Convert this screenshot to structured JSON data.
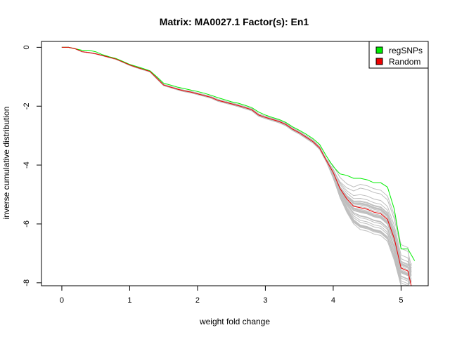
{
  "chart_data": {
    "type": "line",
    "title": "Matrix: MA0027.1 Factor(s): En1",
    "xlabel": "weight fold change",
    "ylabel": "inverse cumulative distribution",
    "xlim": [
      -0.3,
      5.4
    ],
    "ylim": [
      -8.1,
      0.2
    ],
    "xticks": [
      0,
      1,
      2,
      3,
      4,
      5
    ],
    "yticks": [
      0,
      -2,
      -4,
      -6,
      -8
    ],
    "grid": false,
    "legend_position": "top-right",
    "legend": [
      {
        "label": "regSNPs",
        "color": "#00ee00"
      },
      {
        "label": "Random",
        "color": "#ee0000"
      }
    ],
    "series": [
      {
        "name": "regSNPs",
        "color": "#00ee00",
        "x": [
          0,
          0.1,
          0.2,
          0.3,
          0.4,
          0.5,
          0.6,
          0.7,
          0.8,
          0.9,
          1.0,
          1.1,
          1.2,
          1.3,
          1.4,
          1.5,
          1.6,
          1.7,
          1.8,
          1.9,
          2.0,
          2.1,
          2.2,
          2.3,
          2.4,
          2.5,
          2.6,
          2.7,
          2.8,
          2.9,
          3.0,
          3.1,
          3.2,
          3.3,
          3.4,
          3.5,
          3.6,
          3.7,
          3.8,
          3.9,
          4.0,
          4.1,
          4.2,
          4.3,
          4.4,
          4.5,
          4.6,
          4.7,
          4.8,
          4.9,
          5.0,
          5.1,
          5.2
        ],
        "y": [
          0,
          0,
          -0.05,
          -0.1,
          -0.1,
          -0.15,
          -0.25,
          -0.32,
          -0.38,
          -0.48,
          -0.58,
          -0.65,
          -0.72,
          -0.8,
          -1.0,
          -1.22,
          -1.28,
          -1.35,
          -1.4,
          -1.45,
          -1.5,
          -1.56,
          -1.63,
          -1.71,
          -1.78,
          -1.85,
          -1.9,
          -1.97,
          -2.05,
          -2.2,
          -2.3,
          -2.38,
          -2.45,
          -2.55,
          -2.7,
          -2.82,
          -2.95,
          -3.1,
          -3.3,
          -3.7,
          -4.05,
          -4.3,
          -4.35,
          -4.45,
          -4.45,
          -4.5,
          -4.6,
          -4.6,
          -4.75,
          -5.5,
          -6.85,
          -6.85,
          -7.25
        ]
      },
      {
        "name": "Random",
        "color": "#ee0000",
        "x": [
          0,
          0.1,
          0.2,
          0.3,
          0.4,
          0.5,
          0.6,
          0.7,
          0.8,
          0.9,
          1.0,
          1.1,
          1.2,
          1.3,
          1.4,
          1.5,
          1.6,
          1.7,
          1.8,
          1.9,
          2.0,
          2.1,
          2.2,
          2.3,
          2.4,
          2.5,
          2.6,
          2.7,
          2.8,
          2.9,
          3.0,
          3.1,
          3.2,
          3.3,
          3.4,
          3.5,
          3.6,
          3.7,
          3.8,
          3.9,
          4.0,
          4.1,
          4.2,
          4.3,
          4.4,
          4.5,
          4.6,
          4.7,
          4.8,
          4.9,
          5.0,
          5.1,
          5.15
        ],
        "y": [
          0,
          0,
          -0.05,
          -0.15,
          -0.18,
          -0.22,
          -0.28,
          -0.34,
          -0.4,
          -0.5,
          -0.6,
          -0.68,
          -0.75,
          -0.82,
          -1.05,
          -1.28,
          -1.35,
          -1.42,
          -1.48,
          -1.52,
          -1.58,
          -1.64,
          -1.7,
          -1.8,
          -1.86,
          -1.92,
          -1.98,
          -2.05,
          -2.12,
          -2.3,
          -2.38,
          -2.45,
          -2.52,
          -2.62,
          -2.78,
          -2.9,
          -3.05,
          -3.2,
          -3.42,
          -3.85,
          -4.25,
          -4.8,
          -5.15,
          -5.4,
          -5.45,
          -5.5,
          -5.6,
          -5.65,
          -5.85,
          -6.5,
          -7.5,
          -7.6,
          -8.1
        ]
      }
    ],
    "background_series_color": "#bebebe",
    "background_series_count": 30
  }
}
